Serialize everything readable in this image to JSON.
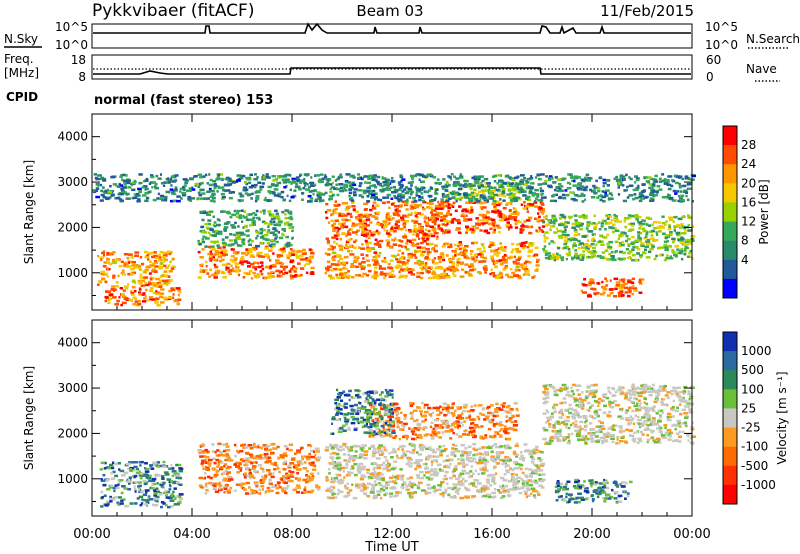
{
  "header": {
    "radar": "Pykkvibaer (fitACF)",
    "beam": "Beam 03",
    "date": "11/Feb/2015"
  },
  "strips": {
    "nsky_label": "N.Sky",
    "nsky_ticks": [
      "10^5",
      "10^0"
    ],
    "nsearch_label": "N.Search",
    "nsearch_ticks": [
      "10^5",
      "10^0"
    ],
    "freq_label_1": "Freq.",
    "freq_label_2": "[MHz]",
    "freq_ticks": [
      "18",
      "8"
    ],
    "nave_label": "Nave",
    "nave_ticks": [
      "60",
      "0"
    ],
    "cpid_label": "CPID",
    "cpid_text": "normal (fast stereo) 153"
  },
  "chart_data": [
    {
      "type": "heatmap",
      "panel": "power",
      "ylabel": "Slant Range [km]",
      "yticks": [
        1000,
        2000,
        3000,
        4000
      ],
      "ylim": [
        180,
        4500
      ],
      "xlim": [
        0,
        24
      ],
      "xticks": [
        "00:00",
        "04:00",
        "08:00",
        "12:00",
        "16:00",
        "20:00",
        "00:00"
      ],
      "colorbar": {
        "label": "Power [dB]",
        "ticks": [
          "28",
          "24",
          "20",
          "16",
          "12",
          "8",
          "4"
        ],
        "colors": [
          "#ff0000",
          "#ff4b00",
          "#ff9600",
          "#f6c800",
          "#9ad000",
          "#33a95a",
          "#2a8a6a",
          "#205a9a",
          "#0000ff"
        ]
      },
      "bands": [
        {
          "t0": 0.2,
          "t1": 3.2,
          "r0": 700,
          "r1": 1500,
          "level": 0.75
        },
        {
          "t0": 0.5,
          "t1": 3.5,
          "r0": 300,
          "r1": 700,
          "level": 0.8
        },
        {
          "t0": 4.2,
          "t1": 8.8,
          "r0": 900,
          "r1": 1600,
          "level": 0.8
        },
        {
          "t0": 4.2,
          "t1": 8.0,
          "r0": 1600,
          "r1": 2400,
          "level": 0.35
        },
        {
          "t0": 9.3,
          "t1": 17.8,
          "r0": 900,
          "r1": 1700,
          "level": 0.75
        },
        {
          "t0": 9.3,
          "t1": 14.0,
          "r0": 1700,
          "r1": 2600,
          "level": 0.8
        },
        {
          "t0": 13.5,
          "t1": 18.0,
          "r0": 1900,
          "r1": 2600,
          "level": 0.85
        },
        {
          "t0": 14.0,
          "t1": 17.5,
          "r0": 2600,
          "r1": 3000,
          "level": 0.45
        },
        {
          "t0": 18.0,
          "t1": 24.0,
          "r0": 1300,
          "r1": 2300,
          "level": 0.45
        },
        {
          "t0": 19.5,
          "t1": 22.0,
          "r0": 500,
          "r1": 900,
          "level": 0.85
        },
        {
          "t0": 0.0,
          "t1": 24.0,
          "r0": 2600,
          "r1": 3200,
          "level": 0.25
        }
      ]
    },
    {
      "type": "heatmap",
      "panel": "velocity",
      "ylabel": "Slant Range [km]",
      "yticks": [
        1000,
        2000,
        3000,
        4000
      ],
      "ylim": [
        180,
        4500
      ],
      "xlim": [
        0,
        24
      ],
      "xticks": [
        "00:00",
        "04:00",
        "08:00",
        "12:00",
        "16:00",
        "20:00",
        "00:00"
      ],
      "xlabel": "Time UT",
      "colorbar": {
        "label": "Velocity [m s⁻¹]",
        "ticks": [
          "1000",
          "500",
          "100",
          "25",
          "-25",
          "-100",
          "-500",
          "-1000"
        ],
        "colors": [
          "#1030b0",
          "#2a6aa0",
          "#2a8a5a",
          "#6abf3a",
          "#c8c8c0",
          "#ff9a20",
          "#ff6a00",
          "#ff3000",
          "#ff0000"
        ]
      },
      "bands": [
        {
          "t0": 0.3,
          "t1": 3.5,
          "r0": 400,
          "r1": 1400,
          "kind": "pos"
        },
        {
          "t0": 4.2,
          "t1": 9.0,
          "r0": 700,
          "r1": 1800,
          "kind": "neg"
        },
        {
          "t0": 9.3,
          "t1": 18.0,
          "r0": 600,
          "r1": 1800,
          "kind": "zero"
        },
        {
          "t0": 11.0,
          "t1": 17.0,
          "r0": 1900,
          "r1": 2700,
          "kind": "neg"
        },
        {
          "t0": 9.5,
          "t1": 12.0,
          "r0": 2000,
          "r1": 3000,
          "kind": "pos"
        },
        {
          "t0": 18.0,
          "t1": 24.0,
          "r0": 1800,
          "r1": 3100,
          "kind": "zero"
        },
        {
          "t0": 18.5,
          "t1": 21.5,
          "r0": 500,
          "r1": 1000,
          "kind": "pos"
        }
      ]
    }
  ]
}
